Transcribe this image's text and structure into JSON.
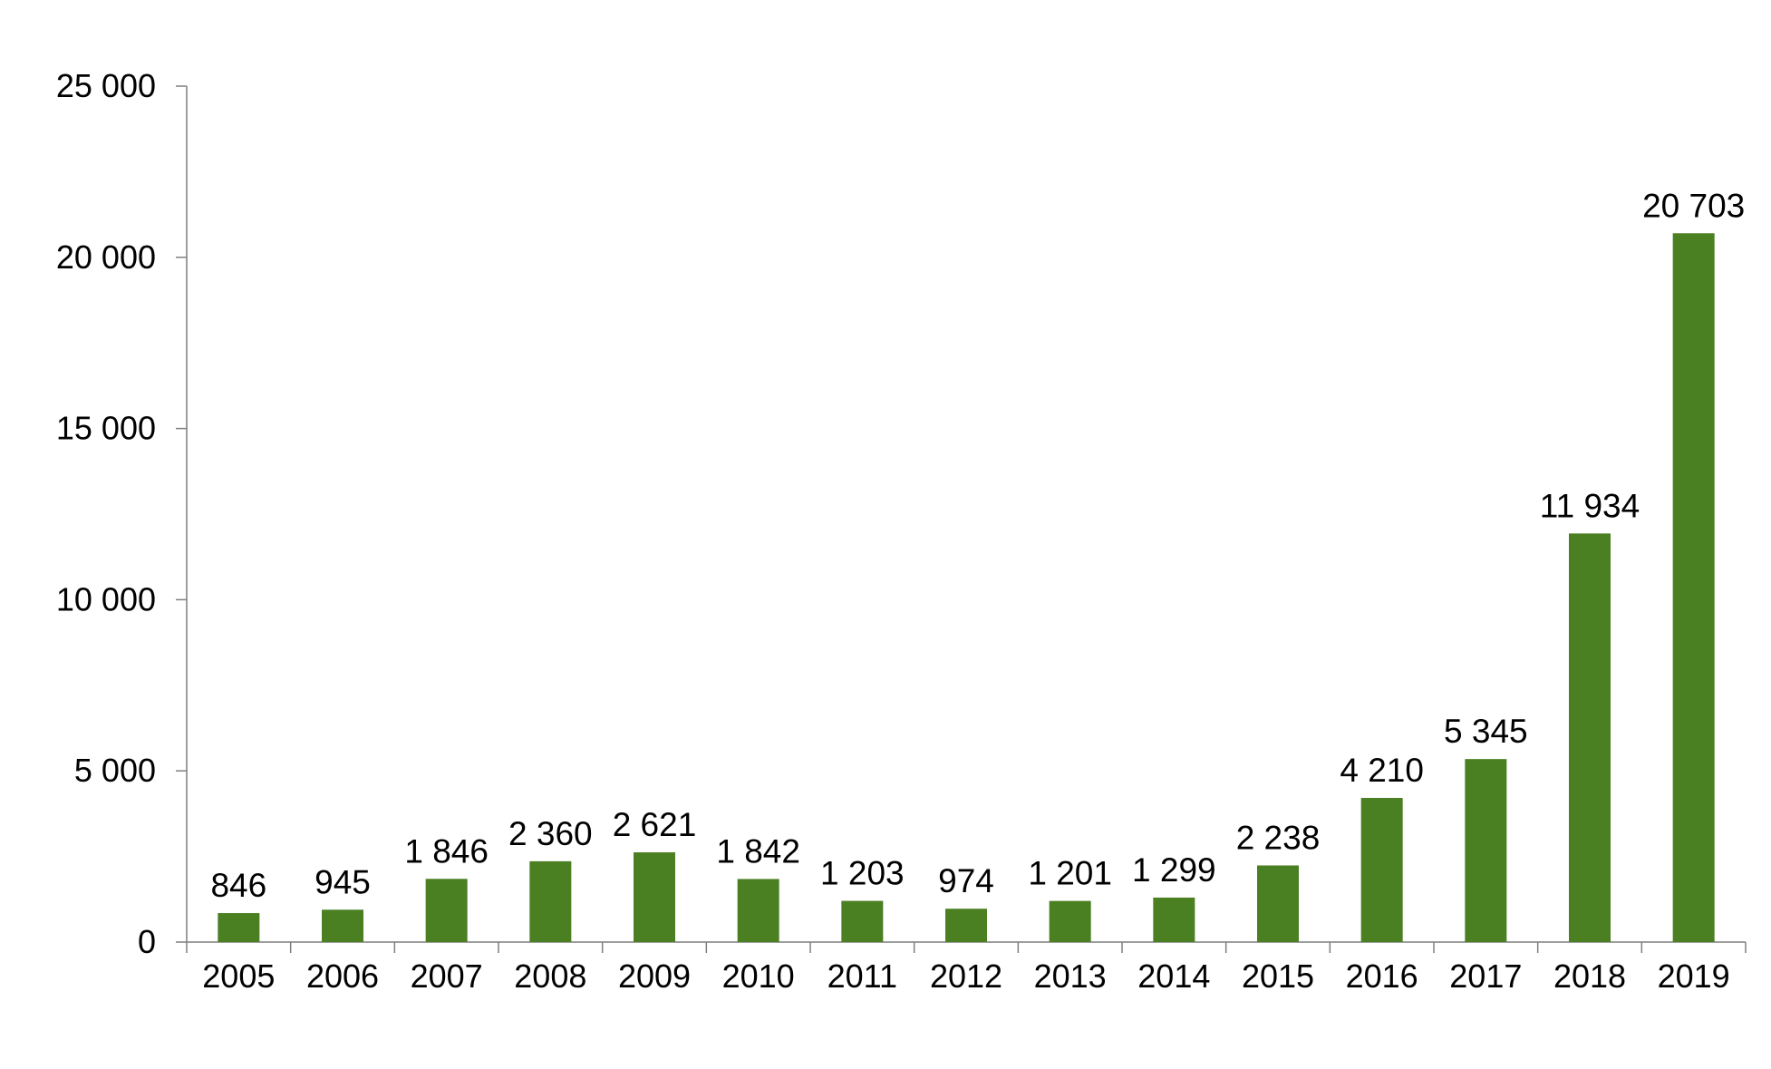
{
  "chart_data": {
    "type": "bar",
    "categories": [
      "2005",
      "2006",
      "2007",
      "2008",
      "2009",
      "2010",
      "2011",
      "2012",
      "2013",
      "2014",
      "2015",
      "2016",
      "2017",
      "2018",
      "2019"
    ],
    "values": [
      846,
      945,
      1846,
      2360,
      2621,
      1842,
      1203,
      974,
      1201,
      1299,
      2238,
      4210,
      5345,
      11934,
      20703
    ],
    "data_labels": [
      "846",
      "945",
      "1 846",
      "2 360",
      "2 621",
      "1 842",
      "1 203",
      "974",
      "1 201",
      "1 299",
      "2 238",
      "4 210",
      "5 345",
      "11 934",
      "20 703"
    ],
    "y_ticks": [
      0,
      5000,
      10000,
      15000,
      20000,
      25000
    ],
    "y_tick_labels": [
      "0",
      "5 000",
      "10 000",
      "15 000",
      "20 000",
      "25 000"
    ],
    "ylim": [
      0,
      25000
    ],
    "title": "",
    "xlabel": "",
    "ylabel": "",
    "grid": false,
    "legend": "none",
    "colors": {
      "bar": "#4a7f22",
      "axis": "#7f7f7f",
      "text": "#000000"
    }
  }
}
